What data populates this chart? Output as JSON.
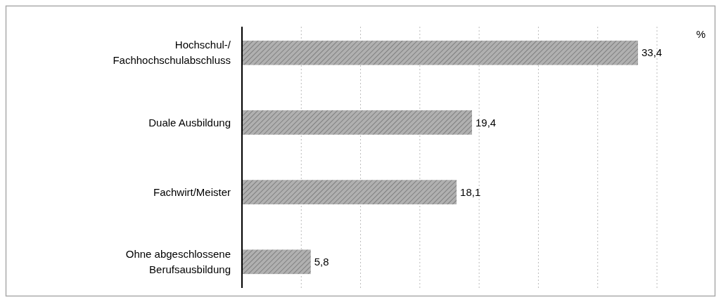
{
  "chart_data": {
    "type": "bar",
    "orientation": "horizontal",
    "xlabel": "%",
    "categories": [
      "Hochschul-/\nFachhochschulabschluss",
      "Duale Ausbildung",
      "Fachwirt/Meister",
      "Ohne abgeschlossene\nBerufsausbildung"
    ],
    "values": [
      33.4,
      19.4,
      18.1,
      5.8
    ],
    "value_labels": [
      "33,4",
      "19,4",
      "18,1",
      "5,8"
    ],
    "color": "#b0b0b0",
    "xlim": [
      0,
      35
    ],
    "xticks": [
      {
        "value": 5,
        "label": null
      },
      {
        "value": 10,
        "label": null
      },
      {
        "value": 15,
        "label": null
      },
      {
        "value": 20,
        "label": null
      },
      {
        "value": 25,
        "label": null
      },
      {
        "value": 30,
        "label": null
      },
      {
        "value": 35,
        "label": null
      }
    ],
    "grid": "x",
    "tick_labels": "y"
  }
}
